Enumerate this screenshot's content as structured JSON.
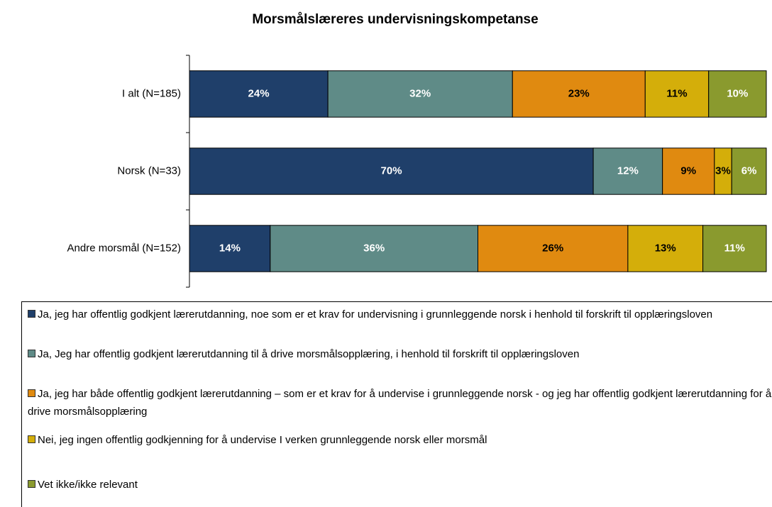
{
  "chart_data": {
    "type": "stacked_barh",
    "title": "Morsmålslæreres undervisningskompetanse",
    "categories": [
      "I alt (N=185)",
      "Norsk (N=33)",
      "Andre morsmål (N=152)"
    ],
    "xlim": [
      0,
      100
    ],
    "series": [
      {
        "name": "Ja, jeg har offentlig godkjent lærerutdanning, noe som er et krav for undervisning i grunnleggende norsk i henhold til forskrift til opplæringsloven",
        "color": "#1f3f6a",
        "label_color": "#ffffff",
        "values": [
          24,
          70,
          14
        ],
        "value_labels": [
          "24%",
          "70%",
          "14%"
        ]
      },
      {
        "name": "Ja, Jeg har offentlig godkjent lærerutdanning til å drive morsmålsopplæring, i henhold til forskrift til opplæringsloven",
        "color": "#5f8b87",
        "label_color": "#ffffff",
        "values": [
          32,
          12,
          36
        ],
        "value_labels": [
          "32%",
          "12%",
          "36%"
        ]
      },
      {
        "name": "Ja, jeg har både offentlig godkjent lærerutdanning – som er et krav for å undervise i grunnleggende norsk - og jeg har offentlig godkjent lærerutdanning for å drive morsmålsopplæring",
        "color": "#e08a10",
        "label_color": "#000000",
        "values": [
          23,
          9,
          26
        ],
        "value_labels": [
          "23%",
          "9%",
          "26%"
        ]
      },
      {
        "name": "Nei, jeg ingen offentlig godkjenning for å undervise I verken grunnleggende norsk eller morsmål",
        "color": "#d4ae0a",
        "label_color": "#000000",
        "values": [
          11,
          3,
          13
        ],
        "value_labels": [
          "11%",
          "3%",
          "13%"
        ]
      },
      {
        "name": "Vet ikke/ikke relevant",
        "color": "#8a9a2e",
        "label_color": "#ffffff",
        "values": [
          10,
          6,
          11
        ],
        "value_labels": [
          "10%",
          "6%",
          "11%"
        ]
      }
    ]
  }
}
